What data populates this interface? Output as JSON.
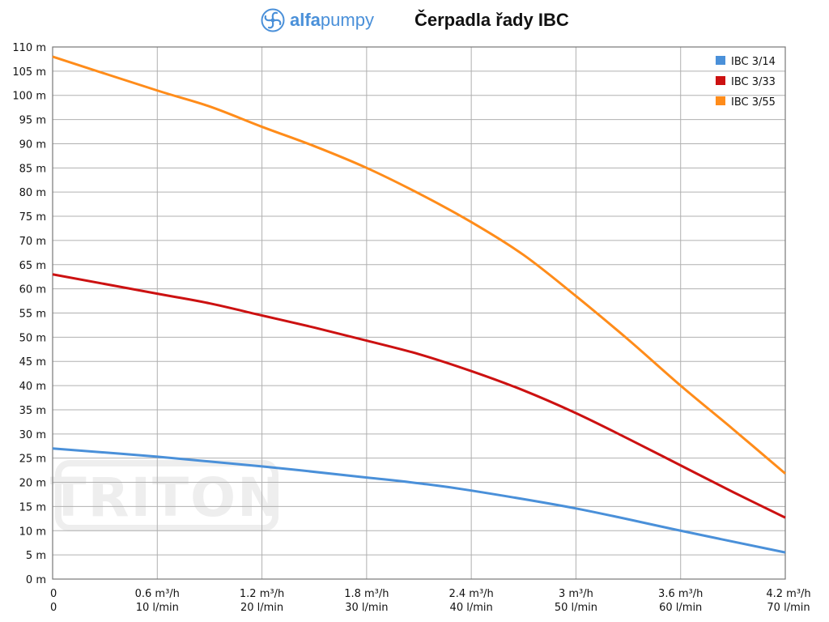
{
  "header": {
    "logo_bold": "alfa",
    "logo_rest": "pumpy",
    "title": "Čerpadla řady IBC"
  },
  "watermark": "TRITON",
  "chart_data": {
    "type": "line",
    "title": "Čerpadla řady IBC",
    "xlabel": "",
    "ylabel": "",
    "xlim": [
      0,
      4.2
    ],
    "ylim": [
      0,
      110
    ],
    "grid": true,
    "legend_position": "top-right",
    "y_ticks": [
      "0 m",
      "5 m",
      "10 m",
      "15 m",
      "20 m",
      "25 m",
      "30 m",
      "35 m",
      "40 m",
      "45 m",
      "50 m",
      "55 m",
      "60 m",
      "65 m",
      "70 m",
      "75 m",
      "80 m",
      "85 m",
      "90 m",
      "95 m",
      "100 m",
      "105 m",
      "110 m"
    ],
    "x_ticks": [
      {
        "value": 0,
        "label": "0",
        "label2": "0"
      },
      {
        "value": 0.6,
        "label": "0.6 m³/h",
        "label2": "10 l/min"
      },
      {
        "value": 1.2,
        "label": "1.2 m³/h",
        "label2": "20 l/min"
      },
      {
        "value": 1.8,
        "label": "1.8 m³/h",
        "label2": "30 l/min"
      },
      {
        "value": 2.4,
        "label": "2.4 m³/h",
        "label2": "40 l/min"
      },
      {
        "value": 3.0,
        "label": "3 m³/h",
        "label2": "50 l/min"
      },
      {
        "value": 3.6,
        "label": "3.6 m³/h",
        "label2": "60 l/min"
      },
      {
        "value": 4.2,
        "label": "4.2 m³/h",
        "label2": "70 l/min"
      }
    ],
    "series": [
      {
        "name": "IBC 3/14",
        "color": "#4a90d9",
        "x": [
          0,
          0.6,
          1.2,
          1.8,
          2.1,
          2.4,
          3.0,
          3.6,
          4.2
        ],
        "y": [
          27,
          25.3,
          23.3,
          21,
          19.8,
          18.3,
          14.6,
          10,
          5.5
        ]
      },
      {
        "name": "IBC 3/33",
        "color": "#cc1111",
        "x": [
          0,
          0.6,
          0.9,
          1.2,
          1.5,
          1.8,
          2.1,
          2.4,
          2.7,
          3.0,
          3.3,
          3.6,
          3.9,
          4.2
        ],
        "y": [
          63,
          59,
          57,
          54.5,
          52,
          49.3,
          46.5,
          43,
          39,
          34.3,
          29,
          23.5,
          18,
          12.7
        ]
      },
      {
        "name": "IBC 3/55",
        "color": "#ff8c1a",
        "x": [
          0,
          0.6,
          0.9,
          1.2,
          1.5,
          1.8,
          2.1,
          2.4,
          2.7,
          3.0,
          3.3,
          3.6,
          3.9,
          4.2
        ],
        "y": [
          108,
          101,
          97.7,
          93.5,
          89.5,
          85,
          79.7,
          73.8,
          67,
          58.5,
          49.5,
          40,
          31,
          21.8
        ]
      }
    ]
  }
}
